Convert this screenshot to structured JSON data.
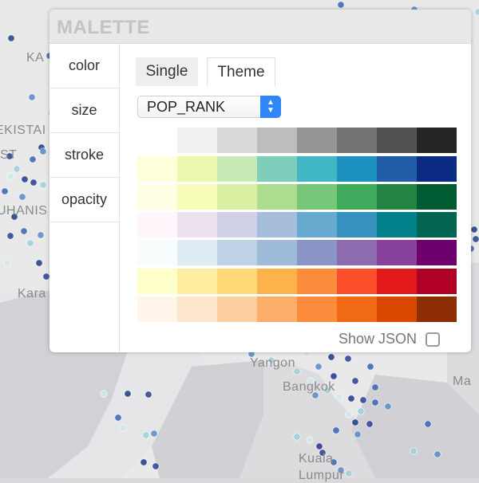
{
  "map": {
    "labels": [
      "KA",
      "EKISTAI",
      "ST",
      "UHANIS",
      "Kara",
      "Yangon",
      "Bangkok",
      "Ma",
      "Kuala",
      "Lumpur"
    ],
    "dot_colors": [
      "#2a3f91",
      "#3a63b0",
      "#5b8bc6",
      "#9ed0d6",
      "#cfe8e6",
      "#1f3a87"
    ]
  },
  "panel": {
    "title": "MALETTE",
    "nav": [
      "color",
      "size",
      "stroke",
      "opacity"
    ],
    "tabs": {
      "single": "Single",
      "theme": "Theme"
    },
    "select_value": "POP_RANK",
    "show_json_label": "Show JSON",
    "show_json_checked": false,
    "palettes": [
      [
        "#ffffff",
        "#f0f0f0",
        "#d9d9d9",
        "#bdbdbd",
        "#969696",
        "#737373",
        "#525252",
        "#252525"
      ],
      [
        "#ffffd9",
        "#edf8b1",
        "#c7e9b4",
        "#7fcdbb",
        "#41b6c4",
        "#1d91c0",
        "#225ea8",
        "#0c2c84"
      ],
      [
        "#ffffe5",
        "#f7fcb9",
        "#d9f0a3",
        "#addd8e",
        "#78c679",
        "#41ab5d",
        "#238443",
        "#005a32"
      ],
      [
        "#fff7fb",
        "#ece2f0",
        "#d0d1e6",
        "#a6bddb",
        "#67a9cf",
        "#3690c0",
        "#02818a",
        "#016450"
      ],
      [
        "#f7fcfd",
        "#e0ecf4",
        "#bfd3e6",
        "#9ebcda",
        "#8c96c6",
        "#8c6bb1",
        "#88419d",
        "#6e016b"
      ],
      [
        "#ffffcc",
        "#ffeda0",
        "#fed976",
        "#feb24c",
        "#fd8d3c",
        "#fc4e2a",
        "#e31a1c",
        "#b10026"
      ],
      [
        "#fff5eb",
        "#fee6ce",
        "#fdd0a2",
        "#fdae6b",
        "#fd8d3c",
        "#f16913",
        "#d94801",
        "#8c2d04"
      ]
    ]
  },
  "icons": {
    "select_arrows": "select-arrows-icon"
  }
}
